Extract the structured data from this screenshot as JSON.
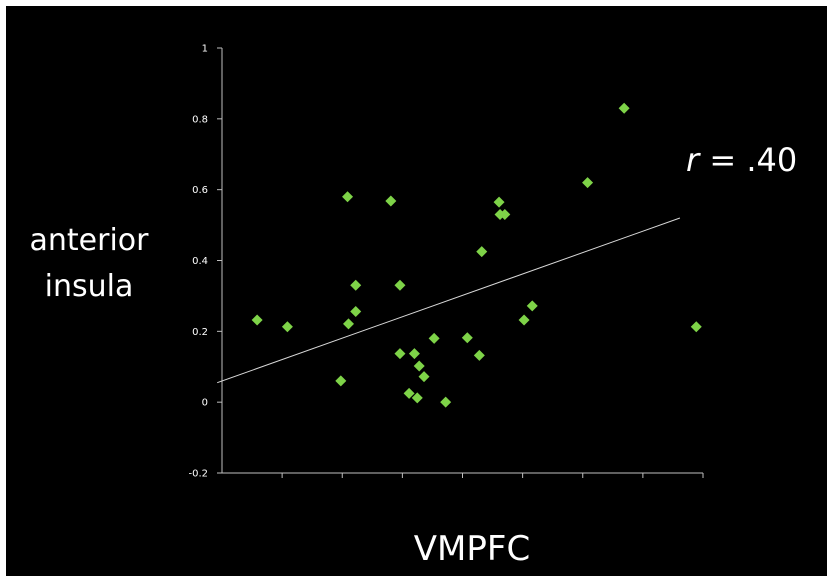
{
  "chart_data": {
    "type": "scatter",
    "title": "",
    "xlabel": "VMPFC",
    "ylabel_lines": [
      "anterior",
      "insula"
    ],
    "annotation": {
      "symbol": "r",
      "text": " = .40"
    },
    "ylim": [
      -0.2,
      1
    ],
    "yticks": [
      "1",
      "0.8",
      "0.6",
      "0.4",
      "0.2",
      "0",
      "-0.2"
    ],
    "ytick_values": [
      1,
      0.8,
      0.6,
      0.4,
      0.2,
      0,
      -0.2
    ],
    "x_ticks_count": 8,
    "grid": false,
    "legend": "none",
    "marker": "diamond",
    "colors": {
      "points": "#7ED348",
      "trendline": "#D8D8D8",
      "background": "#000000",
      "axis": "#BFBFBF"
    },
    "trendline_y": [
      0.055,
      0.52
    ],
    "points_x": [
      0.073,
      0.136,
      0.263,
      0.278,
      0.278,
      0.351,
      0.37,
      0.37,
      0.4,
      0.41,
      0.389,
      0.406,
      0.42,
      0.441,
      0.465,
      0.51,
      0.535,
      0.54,
      0.576,
      0.578,
      0.588,
      0.628,
      0.645,
      0.76,
      0.836,
      0.986,
      0.247,
      0.261
    ],
    "points_y": [
      0.232,
      0.213,
      0.221,
      0.256,
      0.33,
      0.568,
      0.33,
      0.137,
      0.137,
      0.102,
      0.025,
      0.012,
      0.072,
      0.18,
      0.0,
      0.182,
      0.132,
      0.425,
      0.565,
      0.53,
      0.53,
      0.232,
      0.272,
      0.62,
      0.83,
      0.213,
      0.06,
      0.58
    ]
  }
}
